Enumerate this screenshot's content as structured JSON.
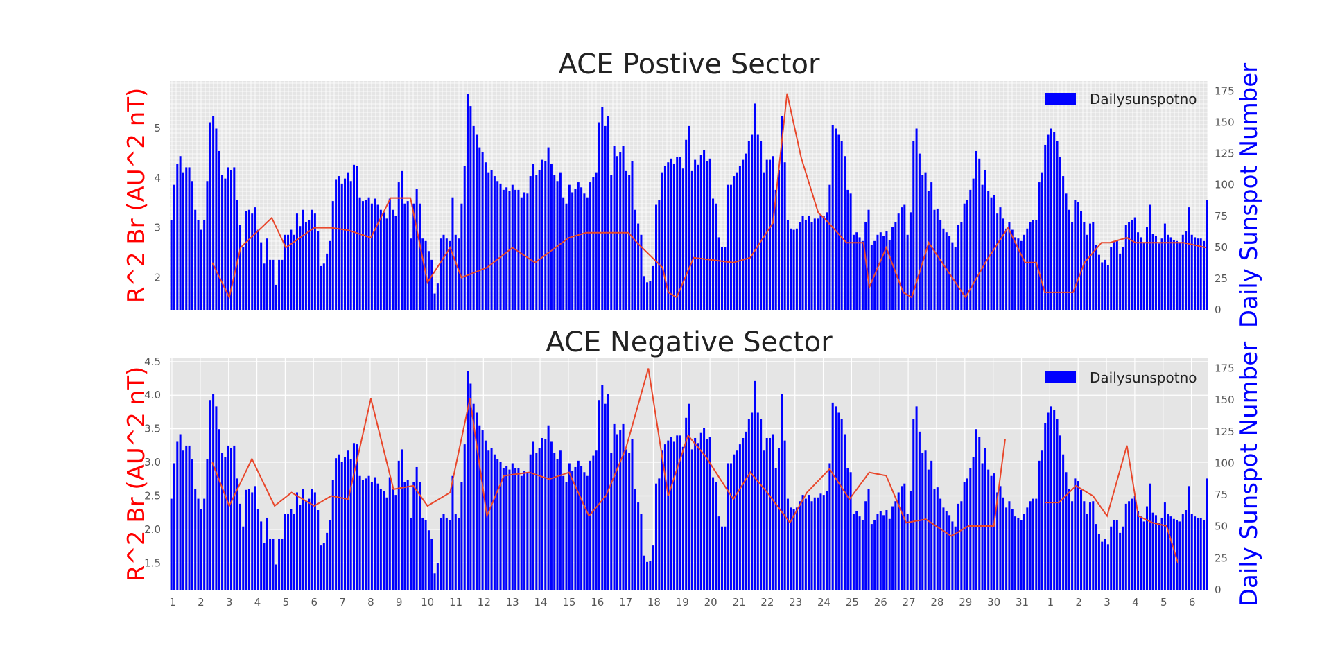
{
  "colors": {
    "bars": "#0000ff",
    "line": "#e8472b",
    "left_label": "#ff0000",
    "right_label": "#0000ff",
    "plot_bg": "#e5e5e5",
    "grid": "#ffffff"
  },
  "date_ticks": [
    "1",
    "2",
    "3",
    "4",
    "5",
    "6",
    "7",
    "8",
    "9",
    "10",
    "11",
    "12",
    "13",
    "14",
    "15",
    "16",
    "17",
    "18",
    "19",
    "20",
    "21",
    "22",
    "23",
    "24",
    "25",
    "26",
    "27",
    "28",
    "29",
    "30",
    "31",
    "1",
    "2",
    "3",
    "4",
    "5",
    "6"
  ],
  "chart_data": [
    {
      "type": "bar+line",
      "title": "ACE Postive Sector",
      "ylabel_left": "R^2 Br (AU^2 nT)",
      "ylabel_right": "Daily Sunspot Number",
      "left_ticks": [
        "2",
        "3",
        "4",
        "5"
      ],
      "right_ticks": [
        "0",
        "25",
        "50",
        "75",
        "100",
        "125",
        "150",
        "175"
      ],
      "ylim_left": [
        1.35,
        5.95
      ],
      "ylim_right": [
        0,
        183
      ],
      "grid": "dense",
      "legend": {
        "label": "Dailysunspotno",
        "position": "top-right"
      },
      "series": [
        {
          "name": "Dailysunspotno",
          "kind": "bar",
          "values": [
            72,
            100,
            117,
            123,
            110,
            114,
            114,
            103,
            80,
            72,
            64,
            72,
            103,
            150,
            155,
            145,
            127,
            108,
            105,
            114,
            112,
            114,
            88,
            68,
            50,
            79,
            80,
            77,
            82,
            64,
            54,
            37,
            57,
            40,
            40,
            20,
            40,
            40,
            60,
            60,
            64,
            60,
            77,
            67,
            80,
            70,
            72,
            80,
            77,
            63,
            35,
            37,
            45,
            55,
            87,
            104,
            107,
            101,
            105,
            110,
            103,
            116,
            115,
            90,
            87,
            88,
            90,
            85,
            89,
            84,
            80,
            78,
            73,
            89,
            80,
            75,
            102,
            111,
            85,
            87,
            57,
            85,
            97,
            85,
            57,
            55,
            47,
            40,
            13,
            21,
            57,
            60,
            57,
            55,
            90,
            60,
            57,
            85,
            115,
            173,
            163,
            147,
            140,
            130,
            126,
            118,
            110,
            112,
            107,
            103,
            101,
            96,
            98,
            95,
            100,
            96,
            96,
            90,
            94,
            93,
            107,
            117,
            108,
            112,
            120,
            119,
            130,
            117,
            108,
            103,
            110,
            90,
            85,
            100,
            94,
            97,
            102,
            98,
            93,
            90,
            102,
            106,
            110,
            150,
            162,
            147,
            155,
            108,
            131,
            123,
            126,
            131,
            111,
            108,
            119,
            80,
            69,
            60,
            27,
            22,
            23,
            35,
            84,
            88,
            110,
            115,
            118,
            121,
            117,
            122,
            122,
            113,
            136,
            147,
            111,
            120,
            116,
            124,
            128,
            119,
            121,
            89,
            85,
            58,
            50,
            50,
            100,
            100,
            107,
            110,
            115,
            120,
            125,
            135,
            140,
            165,
            140,
            135,
            110,
            120,
            120,
            123,
            96,
            112,
            155,
            118,
            72,
            65,
            64,
            65,
            70,
            75,
            72,
            75,
            70,
            73,
            73,
            76,
            75,
            78,
            100,
            148,
            145,
            140,
            135,
            123,
            96,
            93,
            60,
            62,
            58,
            55,
            70,
            80,
            52,
            55,
            60,
            62,
            59,
            63,
            56,
            66,
            70,
            77,
            82,
            84,
            60,
            78,
            135,
            145,
            125,
            108,
            110,
            95,
            102,
            80,
            81,
            72,
            65,
            62,
            59,
            54,
            50,
            68,
            70,
            85,
            88,
            96,
            105,
            127,
            121,
            100,
            112,
            95,
            90,
            92,
            77,
            82,
            73,
            65,
            70,
            64,
            58,
            57,
            55,
            60,
            65,
            70,
            72,
            72,
            102,
            110,
            132,
            140,
            145,
            142,
            135,
            122,
            107,
            93,
            80,
            70,
            88,
            86,
            79,
            70,
            60,
            69,
            70,
            52,
            44,
            38,
            40,
            36,
            50,
            55,
            55,
            45,
            50,
            68,
            70,
            72,
            74,
            62,
            58,
            54,
            66,
            84,
            61,
            59,
            53,
            57,
            69,
            60,
            58,
            56,
            55,
            54,
            60,
            63,
            82,
            60,
            58,
            57,
            57,
            55,
            88
          ]
        },
        {
          "name": "",
          "kind": "line",
          "x": [
            2.4,
            3.0,
            3.4,
            4.5,
            5.0,
            6.0,
            6.6,
            7.2,
            8.0,
            8.7,
            9.4,
            10.0,
            10.8,
            11.2,
            12.1,
            13.0,
            13.8,
            15.0,
            15.6,
            17.1,
            17.4,
            18.3,
            18.5,
            18.8,
            19.4,
            20.8,
            21.4,
            22.2,
            22.7,
            23.2,
            23.8,
            24.0,
            24.8,
            25.4,
            25.6,
            26.2,
            26.8,
            27.1,
            27.7,
            29.0,
            29.7,
            30.5,
            31.1,
            31.5,
            31.8,
            32.8,
            33.2,
            33.8,
            34.1,
            34.7,
            35.0,
            35.9,
            36.5,
            36.7,
            37.5
          ],
          "y": [
            2.3,
            1.6,
            2.6,
            3.2,
            2.6,
            3.0,
            3.0,
            2.95,
            2.8,
            3.6,
            3.6,
            1.9,
            2.6,
            2.0,
            2.2,
            2.6,
            2.3,
            2.8,
            2.9,
            2.9,
            2.7,
            2.2,
            1.7,
            1.6,
            2.4,
            2.3,
            2.4,
            3.1,
            5.7,
            4.4,
            3.3,
            3.2,
            2.7,
            2.7,
            1.8,
            2.6,
            1.7,
            1.6,
            2.7,
            1.6,
            2.3,
            3.0,
            2.3,
            2.3,
            1.7,
            1.7,
            2.3,
            2.7,
            2.7,
            2.8,
            2.7,
            2.7,
            2.7,
            2.7,
            2.6
          ]
        }
      ]
    },
    {
      "type": "bar+line",
      "title": "ACE Negative Sector",
      "ylabel_left": "R^2 Br (AU^2 nT)",
      "ylabel_right": "Daily Sunspot Number",
      "left_ticks": [
        "1.5",
        "2.0",
        "2.5",
        "3.0",
        "3.5",
        "4.0",
        "4.5"
      ],
      "right_ticks": [
        "0",
        "25",
        "50",
        "75",
        "100",
        "125",
        "150",
        "175"
      ],
      "ylim_left": [
        1.1,
        4.55
      ],
      "ylim_right": [
        0,
        183
      ],
      "grid": "major",
      "legend": {
        "label": "Dailysunspotno",
        "position": "top-right"
      },
      "series": [
        {
          "name": "Dailysunspotno",
          "kind": "bar",
          "values": [
            72,
            100,
            117,
            123,
            110,
            114,
            114,
            103,
            80,
            72,
            64,
            72,
            103,
            150,
            155,
            145,
            127,
            108,
            105,
            114,
            112,
            114,
            88,
            68,
            50,
            79,
            80,
            77,
            82,
            64,
            54,
            37,
            57,
            40,
            40,
            20,
            40,
            40,
            60,
            60,
            64,
            60,
            77,
            67,
            80,
            70,
            72,
            80,
            77,
            63,
            35,
            37,
            45,
            55,
            87,
            104,
            107,
            101,
            105,
            110,
            103,
            116,
            115,
            90,
            87,
            88,
            90,
            85,
            89,
            84,
            80,
            78,
            73,
            89,
            80,
            75,
            102,
            111,
            85,
            87,
            57,
            85,
            97,
            85,
            57,
            55,
            47,
            40,
            13,
            21,
            57,
            60,
            57,
            55,
            90,
            60,
            57,
            85,
            115,
            173,
            163,
            147,
            140,
            130,
            126,
            118,
            110,
            112,
            107,
            103,
            101,
            96,
            98,
            95,
            100,
            96,
            96,
            90,
            94,
            93,
            107,
            117,
            108,
            112,
            120,
            119,
            130,
            117,
            108,
            103,
            110,
            90,
            85,
            100,
            94,
            97,
            102,
            98,
            93,
            90,
            102,
            106,
            110,
            150,
            162,
            147,
            155,
            108,
            131,
            123,
            126,
            131,
            111,
            108,
            119,
            80,
            69,
            60,
            27,
            22,
            23,
            35,
            84,
            88,
            110,
            115,
            118,
            121,
            117,
            122,
            122,
            113,
            136,
            147,
            111,
            120,
            116,
            124,
            128,
            119,
            121,
            89,
            85,
            58,
            50,
            50,
            100,
            100,
            107,
            110,
            115,
            120,
            125,
            135,
            140,
            165,
            140,
            135,
            110,
            120,
            120,
            123,
            96,
            112,
            155,
            118,
            72,
            65,
            64,
            65,
            70,
            75,
            72,
            75,
            70,
            73,
            73,
            76,
            75,
            78,
            100,
            148,
            145,
            140,
            135,
            123,
            96,
            93,
            60,
            62,
            58,
            55,
            70,
            80,
            52,
            55,
            60,
            62,
            59,
            63,
            56,
            66,
            70,
            77,
            82,
            84,
            60,
            78,
            135,
            145,
            125,
            108,
            110,
            95,
            102,
            80,
            81,
            72,
            65,
            62,
            59,
            54,
            50,
            68,
            70,
            85,
            88,
            96,
            105,
            127,
            121,
            100,
            112,
            95,
            90,
            92,
            77,
            82,
            73,
            65,
            70,
            64,
            58,
            57,
            55,
            60,
            65,
            70,
            72,
            72,
            102,
            110,
            132,
            140,
            145,
            142,
            135,
            122,
            107,
            93,
            80,
            70,
            88,
            86,
            79,
            70,
            60,
            69,
            70,
            52,
            44,
            38,
            40,
            36,
            50,
            55,
            55,
            45,
            50,
            68,
            70,
            72,
            74,
            62,
            58,
            54,
            66,
            84,
            61,
            59,
            53,
            57,
            69,
            60,
            58,
            56,
            55,
            54,
            60,
            63,
            82,
            60,
            58,
            57,
            57,
            55,
            88
          ]
        },
        {
          "name": "",
          "kind": "line",
          "segments": [
            {
              "x": [
                2.4,
                3.0,
                3.8,
                4.6,
                5.2,
                6.0,
                6.6,
                7.2,
                8.0,
                8.8,
                9.5,
                10.0,
                10.8,
                11.5,
                12.1,
                12.7,
                13.6,
                14.3,
                15.0,
                15.7,
                16.3,
                17.0,
                17.8,
                18.5,
                19.2,
                19.8,
                20.8,
                21.4,
                22.0,
                22.8,
                23.4,
                24.2,
                24.9,
                25.6,
                26.2,
                26.9,
                27.6,
                28.5,
                29.1,
                30.0,
                30.4
              ],
              "y": [
                3.0,
                2.35,
                3.05,
                2.35,
                2.55,
                2.35,
                2.5,
                2.45,
                3.95,
                2.6,
                2.65,
                2.35,
                2.55,
                3.95,
                2.2,
                2.8,
                2.85,
                2.75,
                2.85,
                2.2,
                2.5,
                3.2,
                4.4,
                2.5,
                3.4,
                3.1,
                2.45,
                2.85,
                2.55,
                2.1,
                2.55,
                2.9,
                2.45,
                2.85,
                2.8,
                2.1,
                2.15,
                1.9,
                2.05,
                2.05,
                3.35
              ]
            },
            {
              "x": [
                31.8,
                32.3,
                32.9,
                33.5,
                34.0,
                34.7,
                35.1,
                35.6,
                36.1,
                36.5
              ],
              "y": [
                2.4,
                2.4,
                2.65,
                2.5,
                2.2,
                3.25,
                2.2,
                2.1,
                2.05,
                1.5
              ]
            }
          ]
        }
      ]
    }
  ]
}
